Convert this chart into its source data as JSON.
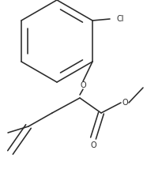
{
  "bg_color": "#ffffff",
  "line_color": "#2a2a2a",
  "lw": 1.15,
  "text_color": "#2a2a2a",
  "figsize": [
    1.86,
    2.19
  ],
  "dpi": 100,
  "xlim": [
    0,
    186
  ],
  "ylim": [
    0,
    219
  ]
}
